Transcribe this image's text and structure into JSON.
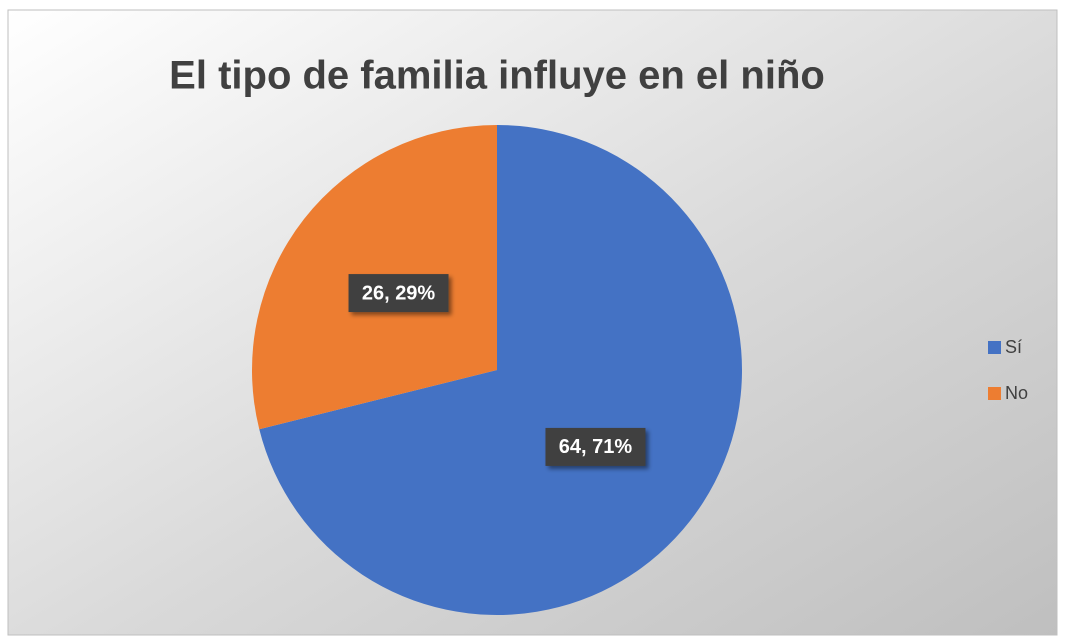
{
  "chart_data": {
    "type": "pie",
    "title": "El tipo de familia influye en el niño",
    "categories": [
      "Sí",
      "No"
    ],
    "values": [
      64,
      26
    ],
    "value_labels": [
      "64, 71%",
      "26, 29%"
    ],
    "colors": [
      "#4472c4",
      "#ed7d31"
    ],
    "legend": "right"
  }
}
